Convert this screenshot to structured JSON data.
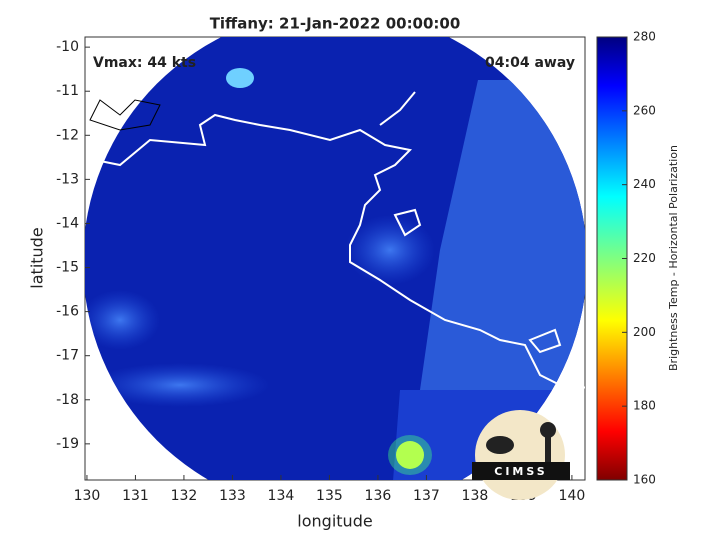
{
  "title": "Tiffany: 21-Jan-2022 00:00:00",
  "annotations": [
    "Vmax: 44 kts",
    "04:04 away"
  ],
  "map": {
    "xlabel": "longitude",
    "ylabel": "latitude",
    "xlim": [
      129.96,
      140.27
    ],
    "ylim": [
      -19.82,
      -9.77
    ],
    "xticks": [
      130,
      131,
      132,
      133,
      134,
      135,
      136,
      137,
      138,
      139,
      140
    ],
    "yticks": [
      -10,
      -11,
      -12,
      -13,
      -14,
      -15,
      -16,
      -17,
      -18,
      -19
    ]
  },
  "colorbar": {
    "label": "Brightness Temp - Horizontal Polarization",
    "lim": [
      160,
      280
    ],
    "ticks": [
      160,
      180,
      200,
      220,
      240,
      260,
      280
    ]
  },
  "logo": "CIMSS"
}
